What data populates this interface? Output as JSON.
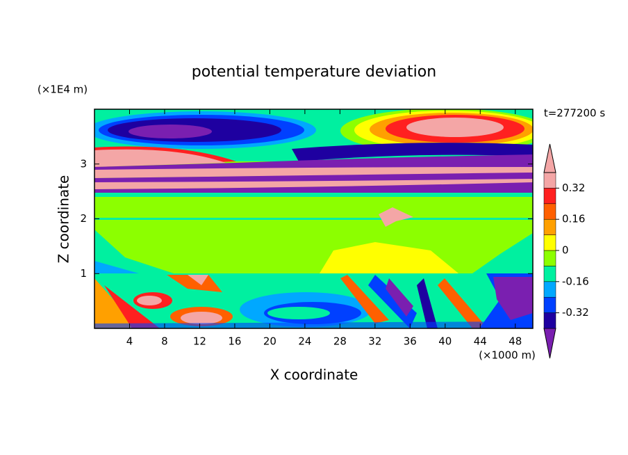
{
  "chart_data": {
    "type": "contour",
    "title": "potential temperature deviation",
    "x_label": "X coordinate",
    "y_label": "Z coordinate",
    "x_unit": "(×1000 m)",
    "y_unit": "(×1E4 m)",
    "annotation": "t=277200 s",
    "xlim": [
      0,
      50
    ],
    "xticks": [
      4,
      8,
      12,
      16,
      20,
      24,
      28,
      32,
      36,
      40,
      44,
      48
    ],
    "ylim": [
      0,
      4
    ],
    "yticks": [
      1,
      2,
      3
    ],
    "colorbar": {
      "levels": [
        -0.4,
        -0.32,
        -0.24,
        -0.16,
        -0.08,
        0,
        0.08,
        0.16,
        0.24,
        0.32,
        0.4
      ],
      "colors": [
        "#7a1fb0",
        "#1e00a0",
        "#0040ff",
        "#00a8ff",
        "#00f0a0",
        "#8cff00",
        "#ffff00",
        "#ffa000",
        "#ff6000",
        "#ff2020",
        "#f4a6a6"
      ],
      "ticks": [
        -0.32,
        -0.16,
        0,
        0.16,
        0.32
      ]
    }
  }
}
